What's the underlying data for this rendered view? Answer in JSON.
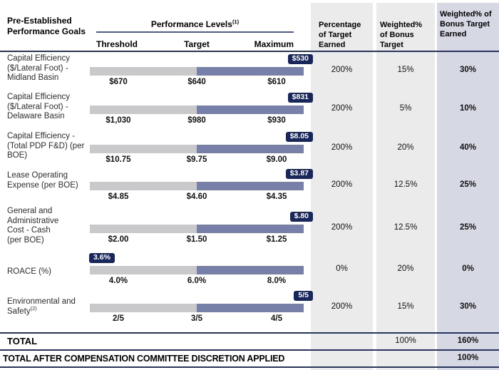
{
  "chart_data": {
    "type": "table",
    "header": {
      "goals": "Pre-Established Performance Goals",
      "levels_group": "Performance Levels",
      "levels_footnote": "(1)",
      "threshold": "Threshold",
      "target": "Target",
      "maximum": "Maximum",
      "pct_earned": "Percentage of Target Earned",
      "weight": "Weighted% of Bonus Target",
      "weighted_earned": "Weighted% of Bonus Target Earned"
    },
    "rows": [
      {
        "goal": "Capital Efficiency ($/Lateral Foot) - Midland Basin",
        "threshold": "$670",
        "target": "$640",
        "maximum": "$610",
        "result": "$530",
        "result_position": "above-maximum",
        "pct_earned": "200%",
        "weight": "15%",
        "weighted_earned": "30%"
      },
      {
        "goal": "Capital Efficiency ($/Lateral Foot) - Delaware Basin",
        "threshold": "$1,030",
        "target": "$980",
        "maximum": "$930",
        "result": "$831",
        "result_position": "above-maximum",
        "pct_earned": "200%",
        "weight": "5%",
        "weighted_earned": "10%"
      },
      {
        "goal": "Capital Efficiency - (Total PDP F&D) (per BOE)",
        "threshold": "$10.75",
        "target": "$9.75",
        "maximum": "$9.00",
        "result": "$8.05",
        "result_position": "above-maximum",
        "pct_earned": "200%",
        "weight": "20%",
        "weighted_earned": "40%"
      },
      {
        "goal": "Lease Operating Expense (per BOE)",
        "threshold": "$4.85",
        "target": "$4.60",
        "maximum": "$4.35",
        "result": "$3.87",
        "result_position": "above-maximum",
        "pct_earned": "200%",
        "weight": "12.5%",
        "weighted_earned": "25%"
      },
      {
        "goal": "General and Administrative Cost - Cash (per BOE)",
        "threshold": "$2.00",
        "target": "$1.50",
        "maximum": "$1.25",
        "result": "$.80",
        "result_position": "above-maximum",
        "pct_earned": "200%",
        "weight": "12.5%",
        "weighted_earned": "25%"
      },
      {
        "goal": "ROACE (%)",
        "threshold": "4.0%",
        "target": "6.0%",
        "maximum": "8.0%",
        "result": "3.6%",
        "result_position": "below-threshold",
        "pct_earned": "0%",
        "weight": "20%",
        "weighted_earned": "0%"
      },
      {
        "goal": "Environmental and Safety",
        "footnote": "(2)",
        "threshold": "2/5",
        "target": "3/5",
        "maximum": "4/5",
        "result": "5/5",
        "result_position": "above-maximum",
        "pct_earned": "200%",
        "weight": "15%",
        "weighted_earned": "30%"
      }
    ],
    "total_row": {
      "label": "TOTAL",
      "weight": "100%",
      "weighted_earned": "160%"
    },
    "final_row": {
      "label": "TOTAL AFTER COMPENSATION COMMITTEE DISCRETION APPLIED",
      "weighted_earned": "100%"
    }
  },
  "colors": {
    "separator_navy": "#27345f",
    "levels_underline": "#515c8e",
    "result_chip_bg": "#17265c",
    "result_chip_text": "#ffffff",
    "bar_threshold_gray": "#c9c9cb",
    "bar_target_max_blue": "#7780a8",
    "column_bg_gray": "#ebebec",
    "column_bg_lavender": "#d6d8e4"
  }
}
